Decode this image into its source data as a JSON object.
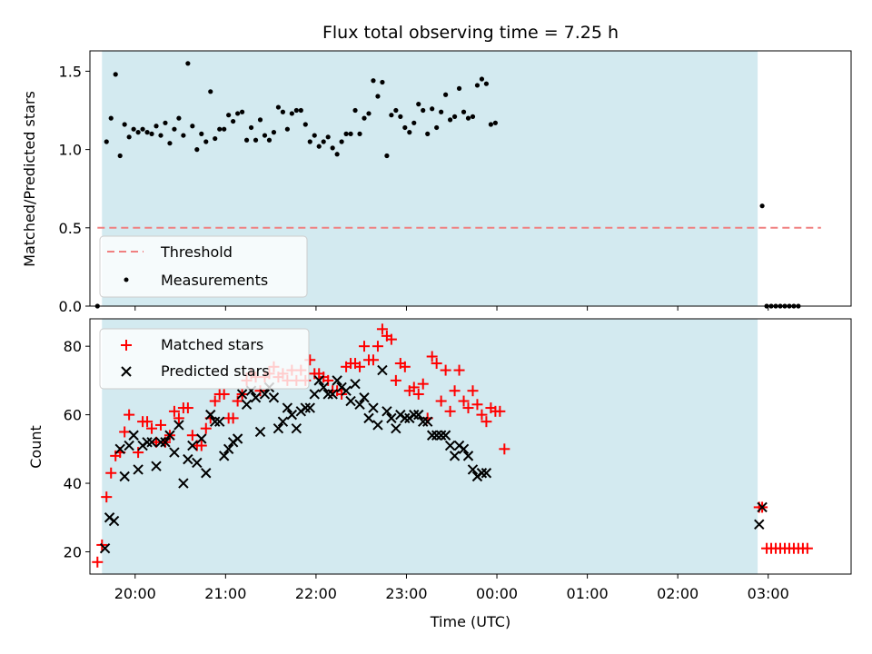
{
  "chart_data": [
    {
      "type": "scatter",
      "title": "Flux total observing time = 7.25 h",
      "xlabel": "",
      "ylabel": "Matched/Predicted stars",
      "ylim": [
        0,
        1.63
      ],
      "xlim": [
        "19:30",
        "03:55"
      ],
      "yticks": [
        "0.0",
        "0.5",
        "1.0",
        "1.5"
      ],
      "observing_window": {
        "start": "19:38",
        "end": "02:53",
        "color": "#d3eaf0"
      },
      "threshold": {
        "name": "Threshold",
        "value": 0.5,
        "x": [
          "19:35",
          "03:35"
        ],
        "color": "#f08080"
      },
      "legend": {
        "location": "lower-left",
        "entries": [
          "Threshold",
          "Measurements"
        ]
      },
      "series": [
        {
          "name": "Measurements",
          "color": "#000000",
          "points": [
            [
              "19:35",
              0.0
            ],
            [
              "19:41",
              1.05
            ],
            [
              "19:44",
              1.2
            ],
            [
              "19:47",
              1.48
            ],
            [
              "19:50",
              0.96
            ],
            [
              "19:53",
              1.16
            ],
            [
              "19:56",
              1.08
            ],
            [
              "19:59",
              1.13
            ],
            [
              "20:02",
              1.11
            ],
            [
              "20:05",
              1.13
            ],
            [
              "20:08",
              1.11
            ],
            [
              "20:11",
              1.1
            ],
            [
              "20:14",
              1.15
            ],
            [
              "20:17",
              1.09
            ],
            [
              "20:20",
              1.17
            ],
            [
              "20:23",
              1.04
            ],
            [
              "20:26",
              1.13
            ],
            [
              "20:29",
              1.2
            ],
            [
              "20:32",
              1.09
            ],
            [
              "20:35",
              1.55
            ],
            [
              "20:38",
              1.15
            ],
            [
              "20:41",
              1.0
            ],
            [
              "20:44",
              1.1
            ],
            [
              "20:47",
              1.05
            ],
            [
              "20:50",
              1.37
            ],
            [
              "20:53",
              1.07
            ],
            [
              "20:56",
              1.13
            ],
            [
              "20:59",
              1.13
            ],
            [
              "21:02",
              1.22
            ],
            [
              "21:05",
              1.18
            ],
            [
              "21:08",
              1.23
            ],
            [
              "21:11",
              1.24
            ],
            [
              "21:14",
              1.06
            ],
            [
              "21:17",
              1.14
            ],
            [
              "21:20",
              1.06
            ],
            [
              "21:23",
              1.19
            ],
            [
              "21:26",
              1.09
            ],
            [
              "21:29",
              1.06
            ],
            [
              "21:32",
              1.11
            ],
            [
              "21:35",
              1.27
            ],
            [
              "21:38",
              1.24
            ],
            [
              "21:41",
              1.13
            ],
            [
              "21:44",
              1.23
            ],
            [
              "21:47",
              1.25
            ],
            [
              "21:50",
              1.25
            ],
            [
              "21:53",
              1.16
            ],
            [
              "21:56",
              1.05
            ],
            [
              "21:59",
              1.09
            ],
            [
              "22:02",
              1.02
            ],
            [
              "22:05",
              1.05
            ],
            [
              "22:08",
              1.08
            ],
            [
              "22:11",
              1.01
            ],
            [
              "22:14",
              0.97
            ],
            [
              "22:17",
              1.05
            ],
            [
              "22:20",
              1.1
            ],
            [
              "22:23",
              1.1
            ],
            [
              "22:26",
              1.25
            ],
            [
              "22:29",
              1.1
            ],
            [
              "22:32",
              1.2
            ],
            [
              "22:35",
              1.23
            ],
            [
              "22:38",
              1.44
            ],
            [
              "22:41",
              1.34
            ],
            [
              "22:44",
              1.43
            ],
            [
              "22:47",
              0.96
            ],
            [
              "22:50",
              1.22
            ],
            [
              "22:53",
              1.25
            ],
            [
              "22:56",
              1.21
            ],
            [
              "22:59",
              1.14
            ],
            [
              "23:02",
              1.11
            ],
            [
              "23:05",
              1.17
            ],
            [
              "23:08",
              1.29
            ],
            [
              "23:11",
              1.25
            ],
            [
              "23:14",
              1.1
            ],
            [
              "23:17",
              1.26
            ],
            [
              "23:20",
              1.14
            ],
            [
              "23:23",
              1.24
            ],
            [
              "23:26",
              1.35
            ],
            [
              "23:29",
              1.19
            ],
            [
              "23:32",
              1.21
            ],
            [
              "23:35",
              1.39
            ],
            [
              "23:38",
              1.24
            ],
            [
              "23:41",
              1.2
            ],
            [
              "23:44",
              1.21
            ],
            [
              "23:47",
              1.41
            ],
            [
              "23:50",
              1.45
            ],
            [
              "23:53",
              1.42
            ],
            [
              "23:56",
              1.16
            ],
            [
              "23:59",
              1.17
            ],
            [
              "02:56",
              0.64
            ],
            [
              "02:59",
              0.0
            ],
            [
              "03:02",
              0.0
            ],
            [
              "03:05",
              0.0
            ],
            [
              "03:08",
              0.0
            ],
            [
              "03:11",
              0.0
            ],
            [
              "03:14",
              0.0
            ],
            [
              "03:17",
              0.0
            ],
            [
              "03:20",
              0.0
            ]
          ]
        }
      ]
    },
    {
      "type": "scatter",
      "title": "",
      "xlabel": "Time (UTC)",
      "ylabel": "Count",
      "ylim": [
        13.5,
        88
      ],
      "xlim": [
        "19:30",
        "03:55"
      ],
      "yticks": [
        "20",
        "40",
        "60",
        "80"
      ],
      "xticks": [
        "20:00",
        "21:00",
        "22:00",
        "23:00",
        "00:00",
        "01:00",
        "02:00",
        "03:00"
      ],
      "observing_window": {
        "start": "19:38",
        "end": "02:53",
        "color": "#d3eaf0"
      },
      "legend": {
        "location": "top-left",
        "entries": [
          "Matched stars",
          "Predicted stars"
        ]
      },
      "series": [
        {
          "name": "Matched stars",
          "marker": "plus",
          "color": "#ff0000",
          "values": [
            17,
            22,
            36,
            43,
            48,
            49,
            55,
            60,
            49,
            58,
            58,
            56,
            52,
            57,
            52,
            54,
            61,
            59,
            62,
            62,
            54,
            51,
            51,
            56,
            59,
            64,
            66,
            66,
            59,
            59,
            64,
            66,
            70,
            72,
            71,
            67,
            71,
            72,
            74,
            71,
            72,
            70,
            73,
            70,
            73,
            70,
            76,
            72,
            72,
            71,
            70,
            67,
            67,
            66,
            74,
            75,
            75,
            74,
            80,
            76,
            76,
            80,
            85,
            83,
            82,
            70,
            75,
            74,
            67,
            68,
            66,
            69,
            59,
            77,
            75,
            64,
            73,
            61,
            67,
            73,
            64,
            62,
            67,
            63,
            60,
            58,
            62,
            61,
            61,
            50,
            33,
            33,
            21,
            21,
            21,
            21,
            21,
            21,
            21,
            21,
            21,
            21
          ],
          "times": [
            "19:35",
            "19:38",
            "19:41",
            "19:44",
            "19:47",
            "19:50",
            "19:53",
            "19:56",
            "20:02",
            "20:05",
            "20:08",
            "20:11",
            "20:14",
            "20:17",
            "20:20",
            "20:23",
            "20:26",
            "20:29",
            "20:32",
            "20:35",
            "20:38",
            "20:41",
            "20:44",
            "20:47",
            "20:50",
            "20:53",
            "20:56",
            "20:59",
            "21:02",
            "21:05",
            "21:08",
            "21:11",
            "21:14",
            "21:17",
            "21:20",
            "21:23",
            "21:26",
            "21:29",
            "21:32",
            "21:35",
            "21:38",
            "21:41",
            "21:44",
            "21:47",
            "21:50",
            "21:53",
            "21:56",
            "21:59",
            "22:02",
            "22:05",
            "22:08",
            "22:11",
            "22:14",
            "22:17",
            "22:20",
            "22:23",
            "22:26",
            "22:29",
            "22:32",
            "22:35",
            "22:38",
            "22:41",
            "22:44",
            "22:47",
            "22:50",
            "22:53",
            "22:56",
            "22:59",
            "23:02",
            "23:05",
            "23:08",
            "23:11",
            "23:14",
            "23:17",
            "23:20",
            "23:23",
            "23:26",
            "23:29",
            "23:32",
            "23:35",
            "23:38",
            "23:41",
            "23:44",
            "23:47",
            "23:50",
            "23:53",
            "23:56",
            "23:59",
            "00:02",
            "00:05",
            "02:54",
            "02:56",
            "02:59",
            "03:02",
            "03:05",
            "03:08",
            "03:11",
            "03:14",
            "03:17",
            "03:20",
            "03:23",
            "03:26"
          ]
        },
        {
          "name": "Predicted stars",
          "marker": "x",
          "color": "#000000",
          "values": [
            21,
            30,
            29,
            50,
            42,
            51,
            54,
            44,
            51,
            52,
            52,
            45,
            52,
            52,
            54,
            49,
            57,
            40,
            47,
            51,
            46,
            53,
            43,
            60,
            58,
            58,
            48,
            50,
            52,
            53,
            66,
            63,
            67,
            65,
            55,
            66,
            68,
            65,
            56,
            58,
            62,
            60,
            56,
            61,
            62,
            62,
            66,
            70,
            68,
            66,
            66,
            70,
            68,
            67,
            64,
            69,
            63,
            65,
            59,
            62,
            57,
            73,
            61,
            59,
            56,
            60,
            59,
            59,
            60,
            60,
            58,
            58,
            54,
            54,
            54,
            54,
            51,
            48,
            51,
            50,
            48,
            44,
            42,
            43,
            43,
            28,
            33
          ],
          "times": [
            "19:40",
            "19:43",
            "19:46",
            "19:50",
            "19:53",
            "19:56",
            "19:59",
            "20:02",
            "20:05",
            "20:08",
            "20:11",
            "20:14",
            "20:17",
            "20:20",
            "20:23",
            "20:26",
            "20:29",
            "20:32",
            "20:35",
            "20:38",
            "20:41",
            "20:44",
            "20:47",
            "20:50",
            "20:53",
            "20:56",
            "20:59",
            "21:02",
            "21:05",
            "21:08",
            "21:11",
            "21:14",
            "21:17",
            "21:20",
            "21:23",
            "21:26",
            "21:29",
            "21:32",
            "21:35",
            "21:38",
            "21:41",
            "21:44",
            "21:47",
            "21:50",
            "21:53",
            "21:56",
            "21:59",
            "22:02",
            "22:05",
            "22:08",
            "22:11",
            "22:14",
            "22:17",
            "22:20",
            "22:23",
            "22:26",
            "22:29",
            "22:32",
            "22:35",
            "22:38",
            "22:41",
            "22:44",
            "22:47",
            "22:50",
            "22:53",
            "22:56",
            "22:59",
            "23:02",
            "23:05",
            "23:08",
            "23:11",
            "23:14",
            "23:17",
            "23:20",
            "23:23",
            "23:26",
            "23:29",
            "23:32",
            "23:35",
            "23:38",
            "23:41",
            "23:44",
            "23:47",
            "23:50",
            "23:53",
            "02:54",
            "02:56"
          ]
        }
      ]
    }
  ]
}
